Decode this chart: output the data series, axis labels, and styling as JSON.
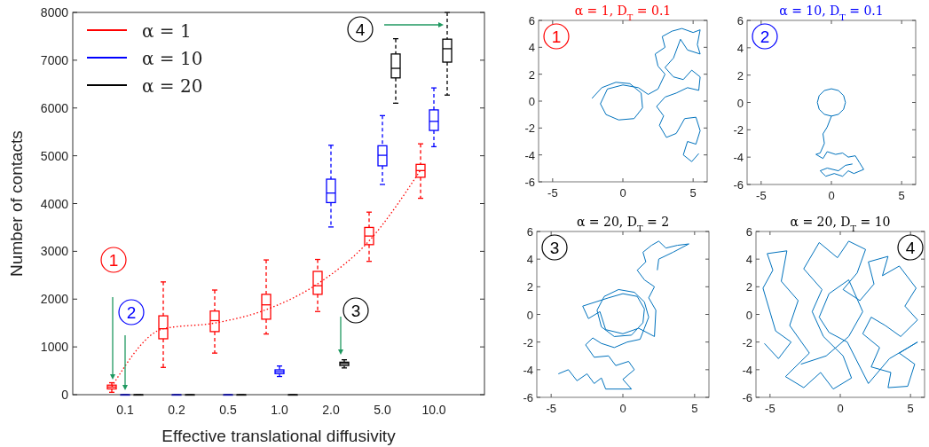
{
  "chart_data": [
    {
      "type": "box",
      "xlabel": "Effective translational diffusivity",
      "ylabel": "Number of contacts",
      "categories": [
        "0.1",
        "0.2",
        "0.5",
        "1.0",
        "2.0",
        "5.0",
        "10.0"
      ],
      "ylim": [
        0,
        8000
      ],
      "yticks": [
        0,
        1000,
        2000,
        3000,
        4000,
        5000,
        6000,
        7000,
        8000
      ],
      "grid": false,
      "legend": "top left",
      "series": [
        {
          "name": "α = 1",
          "color": "#ff0000",
          "boxes": [
            {
              "low": 50,
              "q1": 120,
              "median": 160,
              "q3": 200,
              "high": 250
            },
            {
              "low": 570,
              "q1": 1170,
              "median": 1380,
              "q3": 1650,
              "high": 2360
            },
            {
              "low": 870,
              "q1": 1320,
              "median": 1550,
              "q3": 1750,
              "high": 2190
            },
            {
              "low": 1270,
              "q1": 1580,
              "median": 1880,
              "q3": 2100,
              "high": 2820
            },
            {
              "low": 1740,
              "q1": 2100,
              "median": 2280,
              "q3": 2580,
              "high": 2830
            },
            {
              "low": 2790,
              "q1": 3140,
              "median": 3320,
              "q3": 3500,
              "high": 3820
            },
            {
              "low": 4110,
              "q1": 4550,
              "median": 4690,
              "q3": 4820,
              "high": 5250
            }
          ]
        },
        {
          "name": "α = 10",
          "color": "#0000ff",
          "boxes": [
            {
              "low": 0,
              "q1": 0,
              "median": 0,
              "q3": 0,
              "high": 0
            },
            {
              "low": 0,
              "q1": 0,
              "median": 0,
              "q3": 0,
              "high": 0
            },
            {
              "low": 0,
              "q1": 0,
              "median": 0,
              "q3": 0,
              "high": 0
            },
            {
              "low": 380,
              "q1": 440,
              "median": 480,
              "q3": 520,
              "high": 600
            },
            {
              "low": 3510,
              "q1": 4020,
              "median": 4220,
              "q3": 4510,
              "high": 5220
            },
            {
              "low": 4400,
              "q1": 4790,
              "median": 5010,
              "q3": 5210,
              "high": 5840
            },
            {
              "low": 5190,
              "q1": 5530,
              "median": 5720,
              "q3": 5960,
              "high": 6420
            }
          ]
        },
        {
          "name": "α = 20",
          "color": "#000000",
          "boxes": [
            {
              "low": 0,
              "q1": 0,
              "median": 0,
              "q3": 0,
              "high": 0
            },
            {
              "low": 0,
              "q1": 0,
              "median": 0,
              "q3": 0,
              "high": 0
            },
            {
              "low": 0,
              "q1": 0,
              "median": 0,
              "q3": 0,
              "high": 0
            },
            {
              "low": 0,
              "q1": 0,
              "median": 0,
              "q3": 0,
              "high": 0
            },
            {
              "low": 560,
              "q1": 610,
              "median": 650,
              "q3": 680,
              "high": 730
            },
            {
              "low": 6100,
              "q1": 6630,
              "median": 6830,
              "q3": 7130,
              "high": 7450
            },
            {
              "low": 6270,
              "q1": 6960,
              "median": 7240,
              "q3": 7440,
              "high": 8000
            }
          ]
        },
        {
          "type": "line",
          "color": "#ff0000",
          "line_style": "dotted",
          "values": [
            170,
            1380,
            1500,
            1780,
            2320,
            3220,
            4700
          ]
        }
      ],
      "annotations": [
        "1",
        "2",
        "3",
        "4"
      ]
    },
    {
      "type": "line",
      "title": "α = 1,  D$_{T}$ = 0.1",
      "xlim": [
        -6,
        6
      ],
      "ylim": [
        -6,
        6
      ],
      "xticks": [
        -5,
        0,
        5
      ],
      "yticks": [
        -6,
        -4,
        -2,
        0,
        2,
        4,
        6
      ],
      "annotations": [
        "1"
      ],
      "series": [
        {
          "color": "#0072bd",
          "x": [
            -2.2,
            -1.5,
            -0.5,
            0.5,
            1.3,
            1.4,
            0.8,
            -0.3,
            -1.2,
            -1.6,
            -1.1,
            0,
            1.1,
            1.8,
            2.5,
            3.0,
            2.5,
            2.3,
            3.0,
            2.8,
            3.5,
            4.2,
            5.0,
            5.5,
            5.3,
            5.5,
            4.6,
            4.1,
            3.6,
            3.0,
            3.6,
            4.3,
            4.9,
            5.5,
            5.4,
            4.6,
            3.8,
            3.0,
            2.4,
            2.9,
            2.6,
            3.1,
            3.8,
            4.4,
            5.2,
            5.5,
            5.2,
            4.6,
            4.3,
            4.9,
            5.4
          ],
          "values": [
            0.2,
            1.0,
            1.4,
            1.3,
            0.6,
            -0.5,
            -1.3,
            -1.4,
            -1.0,
            -0.2,
            0.9,
            1.2,
            1.0,
            0.5,
            0.9,
            2.0,
            2.6,
            3.5,
            4.0,
            4.8,
            5.2,
            5.4,
            5.1,
            5.3,
            4.2,
            3.5,
            3.8,
            4.6,
            3.2,
            2.5,
            1.8,
            1.6,
            2.3,
            1.8,
            0.8,
            1.0,
            0.6,
            0.3,
            -0.4,
            -1.1,
            -1.8,
            -2.7,
            -2.4,
            -1.3,
            -1.2,
            -2.2,
            -3.2,
            -3.0,
            -4.0,
            -4.5,
            -3.9
          ]
        }
      ]
    },
    {
      "type": "line",
      "title": "α = 10, D$_{T}$ = 0.1",
      "xlim": [
        -6,
        6
      ],
      "ylim": [
        -6,
        6
      ],
      "xticks": [
        -5,
        0,
        5
      ],
      "yticks": [
        -6,
        -4,
        -2,
        0,
        2,
        4,
        6
      ],
      "annotations": [
        "2"
      ],
      "series": [
        {
          "color": "#0072bd",
          "x": [
            0,
            0.5,
            0.87,
            1,
            0.87,
            0.5,
            0,
            -0.5,
            -0.87,
            -1,
            -0.87,
            -0.5,
            0,
            -0.3,
            -0.6,
            -0.5,
            -0.8,
            -1.1,
            -0.6,
            -0.3,
            0.3,
            0.8,
            1.2,
            1.7,
            2.0,
            2.3,
            1.6,
            1.2,
            0.8,
            0.2,
            -0.4,
            -0.8,
            -0.3,
            0.5,
            1.0,
            1.5
          ],
          "values": [
            -1,
            -0.87,
            -0.5,
            0,
            0.5,
            0.87,
            1,
            0.87,
            0.5,
            0,
            -0.5,
            -0.87,
            -1,
            -1.8,
            -2.3,
            -3.0,
            -3.7,
            -3.8,
            -4.1,
            -3.6,
            -3.8,
            -3.7,
            -4.0,
            -3.9,
            -4.4,
            -4.9,
            -5.2,
            -5.0,
            -5.4,
            -5.2,
            -5.4,
            -5.0,
            -4.8,
            -5.0,
            -4.6,
            -4.5
          ]
        }
      ]
    },
    {
      "type": "line",
      "title": "α = 20, D$_{T}$ = 2",
      "xlim": [
        -6,
        6
      ],
      "ylim": [
        -6,
        6
      ],
      "xticks": [
        -5,
        0,
        5
      ],
      "yticks": [
        -6,
        -4,
        -2,
        0,
        2,
        4,
        6
      ],
      "annotations": [
        "3"
      ],
      "series": [
        {
          "color": "#0072bd",
          "x": [
            -4.5,
            -3.8,
            -3.2,
            -2.5,
            -2.0,
            -1.5,
            -1.2,
            0.6,
            0,
            0.8,
            0.4,
            -0.5,
            -1.0,
            -2.0,
            -2.6,
            -2.1,
            -1.5,
            -0.6,
            0.3,
            1.2,
            1.5,
            1.8,
            1.5,
            0.8,
            -0.3,
            -1.3,
            -1.8,
            -1.5,
            -0.6,
            0.6,
            1.4,
            1.5,
            1.0,
            0,
            -1.0,
            -2.8,
            -2.4,
            -1.6,
            -1.2,
            0,
            1.1,
            2.2,
            2.3,
            1.8,
            2.2,
            1.5,
            1.0,
            1.6,
            1.4,
            2.0,
            2.5,
            3.0,
            3.8,
            4.6,
            3.5,
            2.5,
            2.4
          ],
          "values": [
            -4.3,
            -4.0,
            -4.8,
            -4.3,
            -5.0,
            -4.6,
            -5.4,
            -5.4,
            -4.7,
            -4.0,
            -3.4,
            -3.7,
            -3.0,
            -3.1,
            -2.2,
            -1.7,
            -2.1,
            -2.4,
            -2.0,
            -1.8,
            -1.0,
            -0.2,
            0.9,
            1.6,
            1.8,
            1.3,
            0.3,
            -0.9,
            -1.6,
            -1.5,
            -0.6,
            0.4,
            1.3,
            1.5,
            1.2,
            0.6,
            -0.3,
            0.2,
            -1.1,
            -1.4,
            -1.0,
            -1.6,
            0.3,
            1.2,
            2.0,
            2.5,
            3.2,
            3.8,
            4.5,
            5.0,
            5.3,
            4.8,
            5.0,
            5.1,
            4.5,
            4.0,
            3.2
          ]
        }
      ]
    },
    {
      "type": "line",
      "title": "α = 20, D$_{T}$ = 10",
      "xlim": [
        -6,
        6
      ],
      "ylim": [
        -6,
        6
      ],
      "xticks": [
        -5,
        0,
        5
      ],
      "yticks": [
        -6,
        -4,
        -2,
        0,
        2,
        4,
        6
      ],
      "annotations": [
        "4"
      ],
      "series": [
        {
          "color": "#0072bd",
          "x": [
            -5.4,
            -4.4,
            -3.5,
            -4.6,
            -5.5,
            -4.8,
            -5.2,
            -3.8,
            -4.2,
            -3.0,
            -3.6,
            -2.2,
            -3.9,
            -2.6,
            -1.4,
            -0.5,
            0.8,
            0.2,
            -1.2,
            -2.0,
            -1.3,
            -2.6,
            -1.5,
            -0.2,
            0.6,
            1.8,
            1.2,
            0.2,
            1.4,
            2.4,
            2.0,
            3.4,
            3.0,
            4.2,
            5.4,
            4.6,
            5.5,
            4.3,
            3.2,
            2.2,
            1.6,
            2.8,
            2.2,
            3.6,
            3.4,
            4.8,
            5.3,
            4.2,
            5.5,
            3.5,
            2.0,
            0.5,
            -0.8,
            -1.5,
            -0.8,
            0.6,
            1.6,
            0.6,
            -1.0,
            -2.8
          ],
          "values": [
            -2.1,
            -3.2,
            -2.0,
            -1.2,
            1.9,
            3.2,
            4.4,
            4.6,
            2.4,
            1.0,
            -0.8,
            -2.8,
            -4.5,
            -5.3,
            -4.2,
            -5.4,
            -4.6,
            -3.0,
            -1.6,
            0.2,
            1.8,
            3.3,
            5.2,
            4.1,
            5.3,
            4.7,
            3.0,
            1.8,
            1.0,
            2.2,
            3.8,
            4.2,
            2.8,
            3.5,
            1.9,
            0.6,
            -0.4,
            -1.6,
            -0.8,
            -0.2,
            -1.4,
            -2.4,
            -3.8,
            -4.2,
            -5.3,
            -5.2,
            -3.6,
            -2.8,
            -2.0,
            -3.2,
            -5.0,
            -2.0,
            -1.3,
            -0.2,
            1.5,
            2.5,
            0.2,
            -1.6,
            -3.0,
            -3.6
          ]
        }
      ]
    }
  ]
}
